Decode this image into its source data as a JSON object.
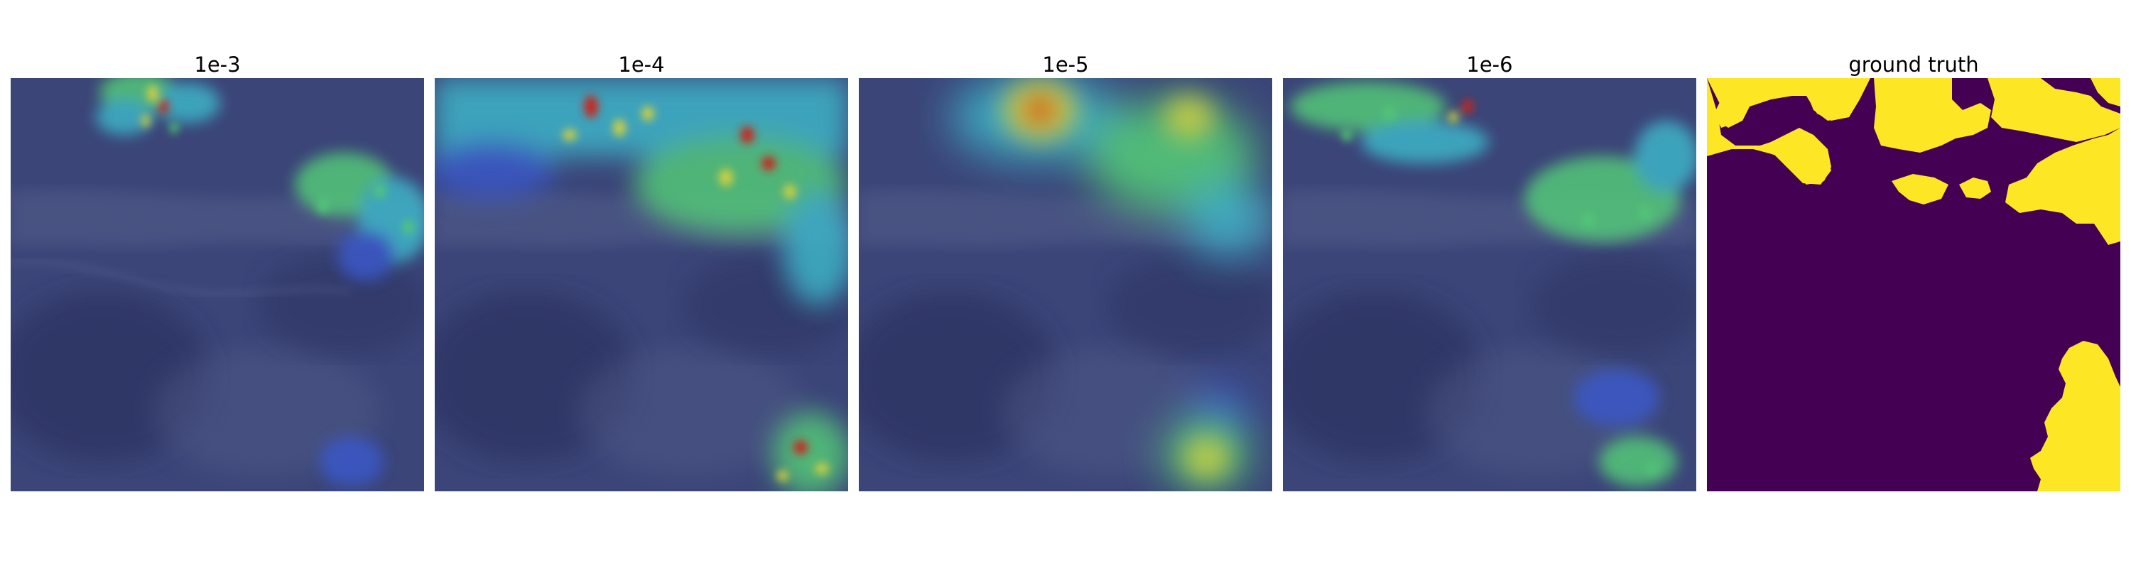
{
  "figure": {
    "panels": [
      {
        "title": "1e-3",
        "kind": "attention-overlay"
      },
      {
        "title": "1e-4",
        "kind": "attention-overlay"
      },
      {
        "title": "1e-5",
        "kind": "attention-overlay"
      },
      {
        "title": "1e-6",
        "kind": "attention-overlay"
      },
      {
        "title": "ground truth",
        "kind": "segmentation-mask"
      }
    ]
  },
  "colors": {
    "background": "#ffffff",
    "terrain_base": "#3b4578",
    "terrain_dark": "#2a3260",
    "terrain_light": "#5a6590",
    "heat_low": "#3a58c8",
    "heat_mid_green": "#52c878",
    "heat_mid_cyan": "#3cb4c8",
    "heat_high_yellow": "#d2d040",
    "heat_peak_red": "#c8281e",
    "mask_background": "#440154",
    "mask_foreground": "#fde725"
  }
}
